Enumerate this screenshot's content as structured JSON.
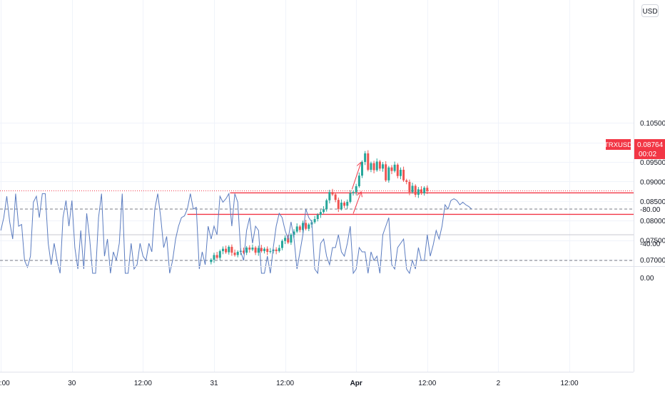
{
  "currency_button": "USD",
  "price_label": {
    "symbol": "TRXUSD",
    "value": "0.08764",
    "timer": "00:02"
  },
  "chart_data": [
    {
      "type": "candlestick",
      "title": "",
      "symbol": "TRXUSD",
      "price_axis": {
        "ticks": [
          0.105,
          0.1,
          0.095,
          0.09,
          0.085,
          0.08,
          0.075,
          0.07
        ],
        "tick_labels": [
          "0.10500",
          "0.10000",
          "0.09500",
          "0.09000",
          "0.08500",
          "0.08000",
          "0.07500",
          "0.07000"
        ]
      },
      "time_axis": {
        "labels": [
          "12:00",
          "30",
          "12:00",
          "31",
          "12:00",
          "Apr",
          "12:00",
          "2",
          "12:00"
        ],
        "bold": [
          false,
          false,
          false,
          false,
          false,
          true,
          false,
          false,
          false
        ],
        "hours": [
          -36,
          -24,
          -12,
          0,
          12,
          24,
          36,
          48,
          60
        ]
      },
      "last_price": 0.08764,
      "candles": {
        "note": "values approximate, read from chart; open/close sequence",
        "start_hour": -0.5,
        "interval_hours": 0.5,
        "closes": [
          0.07,
          0.0712,
          0.0705,
          0.0722,
          0.0728,
          0.0719,
          0.0733,
          0.0718,
          0.0712,
          0.072,
          0.0723,
          0.0718,
          0.0731,
          0.0726,
          0.0731,
          0.0718,
          0.073,
          0.0722,
          0.0728,
          0.072,
          0.0722,
          0.0726,
          0.0722,
          0.073,
          0.0748,
          0.0756,
          0.0744,
          0.0764,
          0.0772,
          0.0785,
          0.0776,
          0.0794,
          0.0779,
          0.079,
          0.0796,
          0.0804,
          0.0815,
          0.0822,
          0.0829,
          0.0852,
          0.0873,
          0.0867,
          0.0853,
          0.083,
          0.0846,
          0.0838,
          0.0848,
          0.087,
          0.0873,
          0.0888,
          0.0915,
          0.095,
          0.0972,
          0.093,
          0.0947,
          0.0929,
          0.0951,
          0.0933,
          0.0944,
          0.0903,
          0.0936,
          0.0927,
          0.0943,
          0.0914,
          0.093,
          0.0903,
          0.0899,
          0.0873,
          0.0889,
          0.0866,
          0.088,
          0.087,
          0.0884,
          0.0876
        ]
      },
      "drawings": [
        {
          "type": "horizontal_line",
          "price": 0.0816,
          "from_hour": -4.5
        },
        {
          "type": "horizontal_line",
          "price": 0.0871,
          "from_hour": 2.7
        },
        {
          "type": "arrow",
          "from": {
            "hour": 23.5,
            "price": 0.0818
          },
          "to": {
            "hour": 24.8,
            "price": 0.0872
          }
        },
        {
          "type": "arrow",
          "from": {
            "hour": 23.3,
            "price": 0.088
          },
          "to": {
            "hour": 24.8,
            "price": 0.0948
          }
        }
      ]
    },
    {
      "type": "line",
      "title": "",
      "indicator_axis": {
        "ticks": [
          0,
          -40,
          -80
        ],
        "tick_labels": [
          "0.00",
          "-40.00",
          "-80.00"
        ],
        "upper_band": -20,
        "middle": -50,
        "lower_band": -80,
        "ylim": [
          -100,
          5
        ]
      },
      "series": [
        {
          "start_hour": -36,
          "interval_hours": 0.5,
          "values": [
            -55,
            -70,
            -95,
            -65,
            -45,
            -98,
            -60,
            -62,
            -20,
            -12,
            -25,
            -88,
            -95,
            -70,
            -98,
            -98,
            -40,
            -15,
            -40,
            -20,
            -5,
            -70,
            -90,
            -60,
            -90,
            -35,
            -10,
            -55,
            -10,
            -75,
            -45,
            -5,
            -5,
            -70,
            -98,
            -25,
            -45,
            -5,
            -30,
            -20,
            -40,
            -98,
            -5,
            -5,
            -40,
            -10,
            -15,
            -40,
            -25,
            -20,
            -40,
            -30,
            -80,
            -98,
            -70,
            -35,
            -48,
            -5,
            -20,
            -45,
            -60,
            -70,
            -72,
            -80,
            -98,
            -80,
            -82,
            -10,
            -30,
            -15,
            -60,
            -45,
            -60,
            -50,
            -95,
            -88,
            -92,
            -98,
            -60,
            -98,
            -88,
            -30,
            -20,
            -55,
            -70,
            -40,
            -60,
            -55,
            -5,
            -5,
            -25,
            -5,
            -35,
            -60,
            -75,
            -70,
            -55,
            -45,
            -65,
            -45,
            -10,
            -30,
            -50,
            -80,
            -70,
            -65,
            -10,
            -5,
            -40,
            -45,
            -25,
            -15,
            -35,
            -35,
            -50,
            -30,
            -25,
            -40,
            -60,
            -5,
            -10,
            -35,
            -30,
            -30,
            -5,
            -30,
            -20,
            -25,
            -5,
            -50,
            -60,
            -70,
            -15,
            -10,
            -35,
            -40,
            -45,
            -10,
            -5,
            -20,
            -10,
            -35,
            -20,
            -20,
            -50,
            -25,
            -38,
            -55,
            -45,
            -60,
            -85,
            -80,
            -90,
            -92,
            -90,
            -85,
            -88,
            -85,
            -83,
            -80
          ]
        }
      ]
    }
  ]
}
